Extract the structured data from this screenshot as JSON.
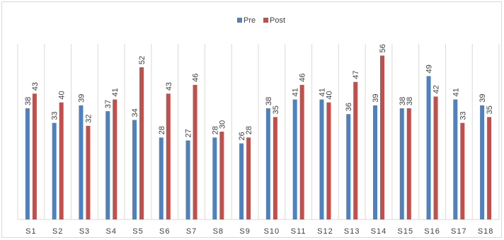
{
  "chart_data": {
    "type": "bar",
    "categories": [
      "S1",
      "S2",
      "S3",
      "S4",
      "S5",
      "S6",
      "S7",
      "S8",
      "S9",
      "S10",
      "S11",
      "S12",
      "S13",
      "S14",
      "S15",
      "S16",
      "S17",
      "S18"
    ],
    "series": [
      {
        "name": "Pre",
        "color": "#4f81bd",
        "values": [
          38,
          33,
          39,
          37,
          34,
          28,
          27,
          28,
          26,
          38,
          41,
          41,
          36,
          39,
          38,
          49,
          41,
          39
        ]
      },
      {
        "name": "Post",
        "color": "#c0504d",
        "values": [
          43,
          40,
          32,
          41,
          52,
          43,
          46,
          30,
          28,
          35,
          46,
          40,
          47,
          56,
          38,
          42,
          33,
          35
        ]
      }
    ],
    "ylim": [
      0,
      60
    ],
    "grid": "vertical",
    "legend_position": "top",
    "data_labels": true,
    "title": "",
    "xlabel": "",
    "ylabel": ""
  }
}
